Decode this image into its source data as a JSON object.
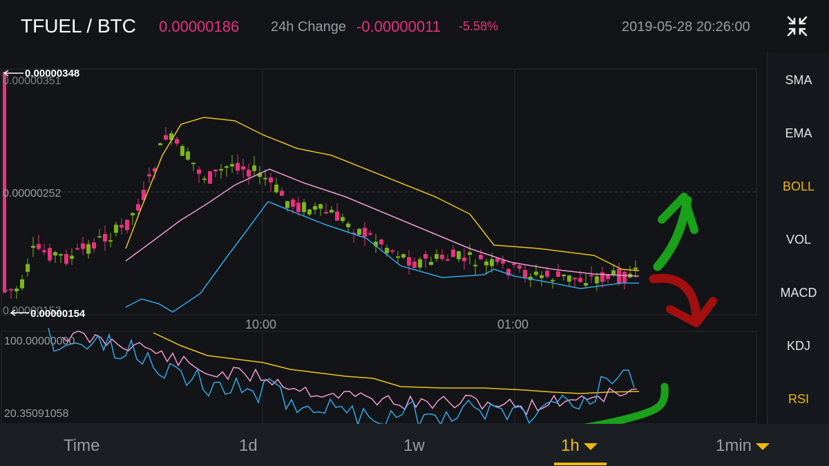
{
  "header": {
    "pair": "TFUEL / BTC",
    "price": "0.00000186",
    "change_label": "24h Change",
    "change_value": "-0.00000011",
    "change_percent": "-5.58%",
    "datetime": "2019-05-28 20:26:00",
    "collapse_icon": "collapse-arrows-icon"
  },
  "main_chart": {
    "high_marker": "0.00000348",
    "low_marker": "0.00000154",
    "y_top_label": "0.00000351",
    "y_mid_label": "0.00000252",
    "y_bottom_label": "0.00000153",
    "x_labels": [
      "10:00",
      "01:00"
    ]
  },
  "rsi_chart": {
    "top_label": "100.00000000",
    "bottom_label": "20.35091058"
  },
  "indicators": [
    {
      "label": "SMA",
      "active": false
    },
    {
      "label": "EMA",
      "active": false
    },
    {
      "label": "BOLL",
      "active": true
    },
    {
      "label": "VOL",
      "active": false
    },
    {
      "label": "MACD",
      "active": false
    },
    {
      "label": "KDJ",
      "active": false
    },
    {
      "label": "RSI",
      "active": true
    }
  ],
  "tabs": [
    {
      "label": "Time"
    },
    {
      "label": "1d"
    },
    {
      "label": "1w"
    },
    {
      "label": "1h",
      "active": true
    },
    {
      "label": "1min"
    }
  ],
  "colors": {
    "up": "#7cb518",
    "down": "#e8327d",
    "accent": "#f0b90b",
    "boll_upper": "#f0c419",
    "boll_mid": "#f39bd0",
    "boll_lower": "#35a7ea",
    "annotation_green": "#1aa01a",
    "annotation_red": "#a10f0f"
  }
}
